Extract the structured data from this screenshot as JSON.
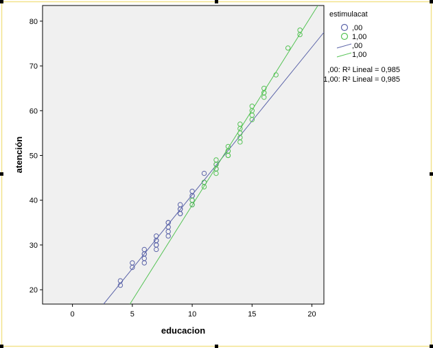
{
  "chart_data": {
    "type": "scatter",
    "xlabel": "educacion",
    "ylabel": "atención",
    "xlim": [
      -2.5,
      21
    ],
    "ylim": [
      16.8,
      83.5
    ],
    "xticks": [
      0,
      5,
      10,
      15,
      20
    ],
    "yticks": [
      20,
      30,
      40,
      50,
      60,
      70,
      80
    ],
    "grid": false,
    "legend_placement": "right",
    "legend_title": "estimulacat",
    "colors": {
      "s0": "#5a63a8",
      "s1": "#53c253",
      "plot_bg": "#f0f0f0",
      "frame": "#f2e28a"
    },
    "series": [
      {
        "name": ",00",
        "color": "#5a63a8",
        "x": [
          4,
          4,
          5,
          5,
          6,
          6,
          6,
          6,
          6,
          7,
          7,
          7,
          7,
          7,
          7,
          8,
          8,
          8,
          8,
          8,
          9,
          9,
          9,
          9,
          9,
          10,
          10,
          10,
          10,
          10,
          11,
          11,
          12,
          12
        ],
        "y": [
          21,
          22,
          25,
          26,
          26,
          27,
          28,
          28,
          29,
          29,
          30,
          30,
          31,
          31,
          32,
          32,
          33,
          34,
          35,
          35,
          37,
          37,
          38,
          38,
          39,
          39,
          40,
          41,
          41,
          42,
          44,
          46,
          47,
          48
        ],
        "fit": {
          "label": ",00",
          "r2_label": ",00: R² Lineal = 0,985",
          "x": [
            2.6,
            21
          ],
          "y": [
            16.8,
            77.5
          ]
        }
      },
      {
        "name": "1,00",
        "color": "#53c253",
        "x": [
          10,
          10,
          11,
          11,
          12,
          12,
          12,
          12,
          13,
          13,
          13,
          13,
          13,
          14,
          14,
          14,
          14,
          14,
          15,
          15,
          15,
          15,
          16,
          16,
          16,
          16,
          17,
          18,
          19,
          19
        ],
        "y": [
          39,
          40,
          43,
          44,
          46,
          47,
          48,
          49,
          50,
          50,
          51,
          51,
          52,
          53,
          54,
          55,
          56,
          57,
          58,
          59,
          60,
          61,
          63,
          64,
          64,
          65,
          68,
          74,
          77,
          78
        ],
        "fit": {
          "label": "1,00",
          "r2_label": "1,00: R² Lineal = 0,985",
          "x": [
            4.8,
            20.5
          ],
          "y": [
            16.8,
            83.5
          ]
        }
      }
    ]
  }
}
